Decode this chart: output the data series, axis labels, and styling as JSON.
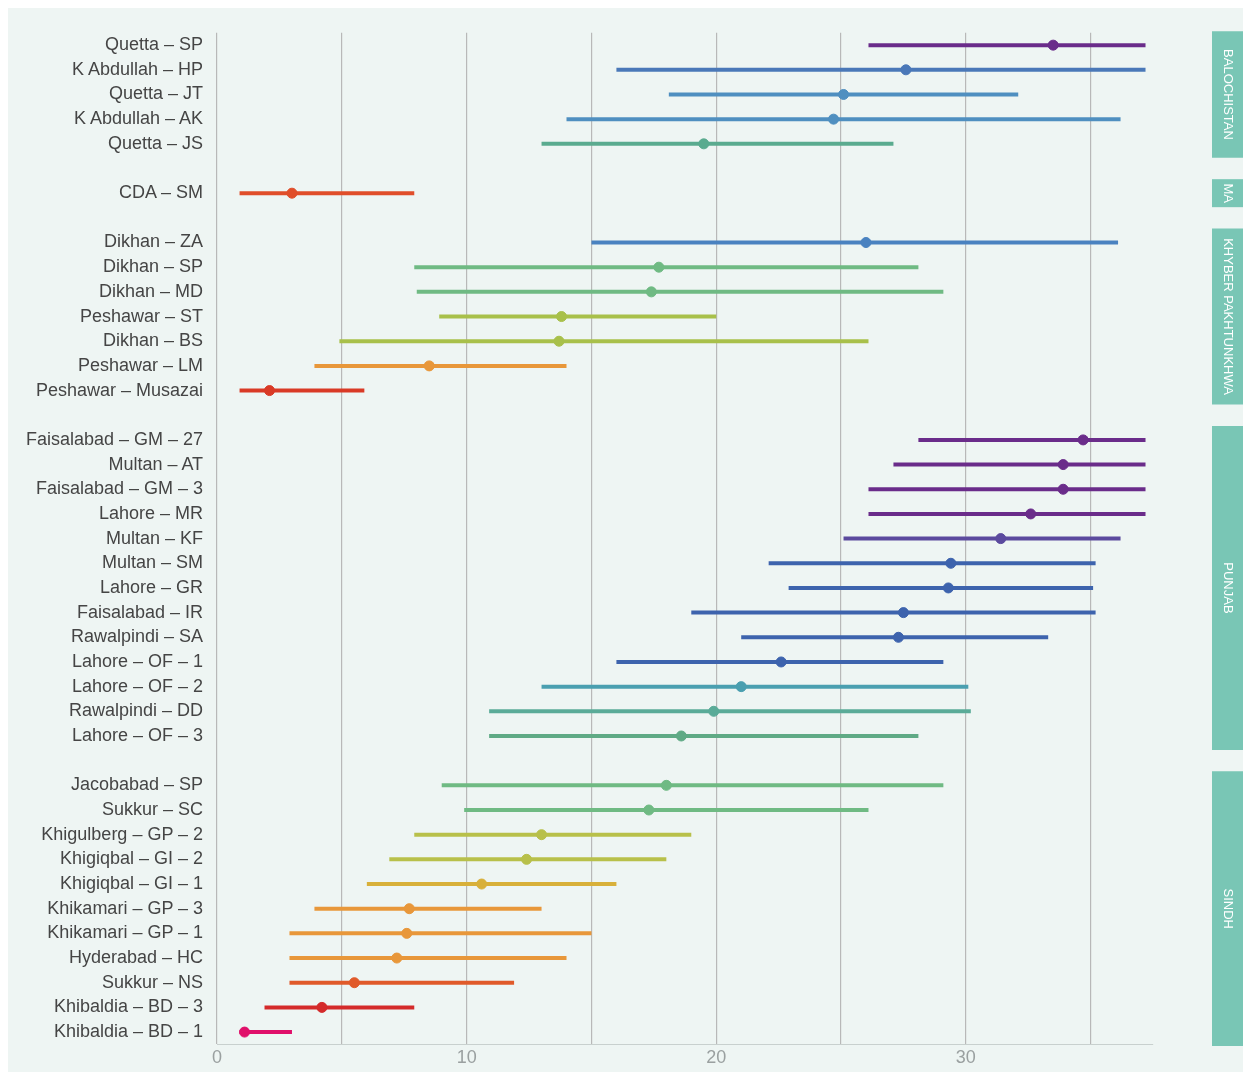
{
  "chart_data": {
    "type": "scatter",
    "orientation": "horizontal",
    "categories": [
      "Quetta – SP",
      "K Abdullah – HP",
      "Quetta – JT",
      "K Abdullah – AK",
      "Quetta – JS",
      null,
      "CDA – SM",
      null,
      "Dikhan – ZA",
      "Dikhan – SP",
      "Dikhan – MD",
      "Peshawar – ST",
      "Dikhan – BS",
      "Peshawar – LM",
      "Peshawar – Musazai",
      null,
      "Faisalabad – GM – 27",
      "Multan – AT",
      "Faisalabad – GM – 3",
      "Lahore – MR",
      "Multan – KF",
      "Multan – SM",
      "Lahore – GR",
      "Faisalabad – IR",
      "Rawalpindi – SA",
      "Lahore – OF – 1",
      "Lahore – OF – 2",
      "Rawalpindi – DD",
      "Lahore – OF – 3",
      null,
      "Jacobabad – SP",
      "Sukkur – SC",
      "Khigulberg – GP – 2",
      "Khigiqbal – GI – 2",
      "Khigiqbal – GI – 1",
      "Khikamari – GP – 3",
      "Khikamari – GP – 1",
      "Hyderabad – HC",
      "Sukkur – NS",
      "Khibaldia – BD – 3",
      "Khibaldia – BD – 1"
    ],
    "values": [
      33.5,
      27.6,
      25.1,
      24.7,
      19.5,
      null,
      3.0,
      null,
      26.0,
      17.7,
      17.4,
      13.8,
      13.7,
      8.5,
      2.1,
      null,
      34.7,
      33.9,
      33.9,
      32.6,
      31.4,
      29.4,
      29.3,
      27.5,
      27.3,
      22.6,
      21.0,
      19.9,
      18.6,
      null,
      18.0,
      17.3,
      13.0,
      12.4,
      10.6,
      7.7,
      7.6,
      7.2,
      5.5,
      4.2,
      1.1
    ],
    "errors": [
      [
        26.1,
        37.2
      ],
      [
        16.0,
        37.2
      ],
      [
        18.1,
        32.1
      ],
      [
        14.0,
        36.2
      ],
      [
        13.0,
        27.1
      ],
      null,
      [
        0.9,
        7.9
      ],
      null,
      [
        15.0,
        36.1
      ],
      [
        7.9,
        28.1
      ],
      [
        8.0,
        29.1
      ],
      [
        8.9,
        20.0
      ],
      [
        4.9,
        26.1
      ],
      [
        3.9,
        14.0
      ],
      [
        0.9,
        5.9
      ],
      null,
      [
        28.1,
        37.2
      ],
      [
        27.1,
        37.2
      ],
      [
        26.1,
        37.2
      ],
      [
        26.1,
        37.2
      ],
      [
        25.1,
        36.2
      ],
      [
        22.1,
        35.2
      ],
      [
        22.9,
        35.1
      ],
      [
        19.0,
        35.2
      ],
      [
        21.0,
        33.3
      ],
      [
        16.0,
        29.1
      ],
      [
        13.0,
        30.1
      ],
      [
        10.9,
        30.2
      ],
      [
        10.9,
        28.1
      ],
      null,
      [
        9.0,
        29.1
      ],
      [
        9.9,
        26.1
      ],
      [
        7.9,
        19.0
      ],
      [
        6.9,
        18.0
      ],
      [
        6.0,
        16.0
      ],
      [
        3.9,
        13.0
      ],
      [
        2.9,
        15.0
      ],
      [
        2.9,
        14.0
      ],
      [
        2.9,
        11.9
      ],
      [
        1.9,
        7.9
      ],
      [
        0.9,
        3.0
      ]
    ],
    "colors": [
      "#6a2c8a",
      "#4a78b8",
      "#4f8fc0",
      "#4f8fc0",
      "#5aab8f",
      null,
      "#e04e2a",
      null,
      "#4a82c0",
      "#6fba83",
      "#6fba83",
      "#a8c04a",
      "#a8c04a",
      "#e8973a",
      "#d93a26",
      null,
      "#6a2c8a",
      "#6a2c8a",
      "#6a2c8a",
      "#6a2c8a",
      "#5b4a9e",
      "#3d63ad",
      "#3d63ad",
      "#3d63ad",
      "#3d63ad",
      "#3d63ad",
      "#4a9fb0",
      "#5aab98",
      "#5faa85",
      null,
      "#6fba83",
      "#6fba83",
      "#b8c04a",
      "#b8c04a",
      "#d8b03a",
      "#e8973a",
      "#e8973a",
      "#e8973a",
      "#e05a2a",
      "#d42a2a",
      "#e0106a"
    ],
    "xlim": [
      0,
      37.5
    ],
    "xticks": [
      0,
      {
        "value": 5,
        "label": null
      },
      10,
      {
        "value": 15,
        "label": null
      },
      20,
      {
        "value": 25,
        "label": null
      },
      30,
      {
        "value": 35,
        "label": null
      }
    ],
    "grid": "x",
    "legend": false,
    "marker": "circle",
    "annotations": [
      "BALOCHISTAN",
      "MA",
      "KHYBER PAKHTUNKHWA",
      "PUNJAB",
      "SINDH"
    ]
  }
}
